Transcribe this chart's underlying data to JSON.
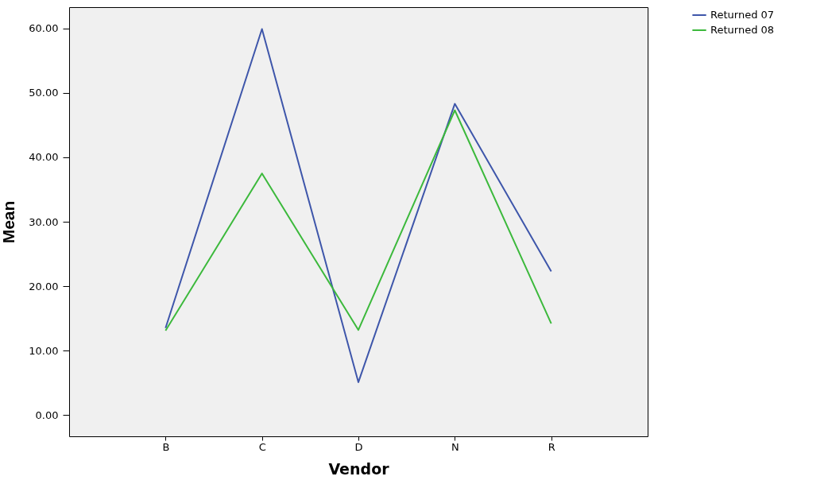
{
  "chart_data": {
    "type": "line",
    "xlabel": "Vendor",
    "ylabel": "Mean",
    "categories": [
      "B",
      "C",
      "D",
      "N",
      "R"
    ],
    "series": [
      {
        "name": "Returned 07",
        "color": "#3e56aa",
        "values": [
          13.5,
          59.9,
          5.1,
          48.3,
          22.3
        ]
      },
      {
        "name": "Returned 08",
        "color": "#3cb93c",
        "values": [
          13.1,
          37.5,
          13.2,
          47.3,
          14.2
        ]
      }
    ],
    "ylim": [
      -3.3,
      63.3
    ],
    "yticks": [
      {
        "value": 0,
        "label": "0.00"
      },
      {
        "value": 10,
        "label": "10.00"
      },
      {
        "value": 20,
        "label": "20.00"
      },
      {
        "value": 30,
        "label": "30.00"
      },
      {
        "value": 40,
        "label": "40.00"
      },
      {
        "value": 50,
        "label": "50.00"
      },
      {
        "value": 60,
        "label": "60.00"
      }
    ],
    "grid": false,
    "legend": "top right",
    "marker": "none",
    "line_style": "solid"
  }
}
